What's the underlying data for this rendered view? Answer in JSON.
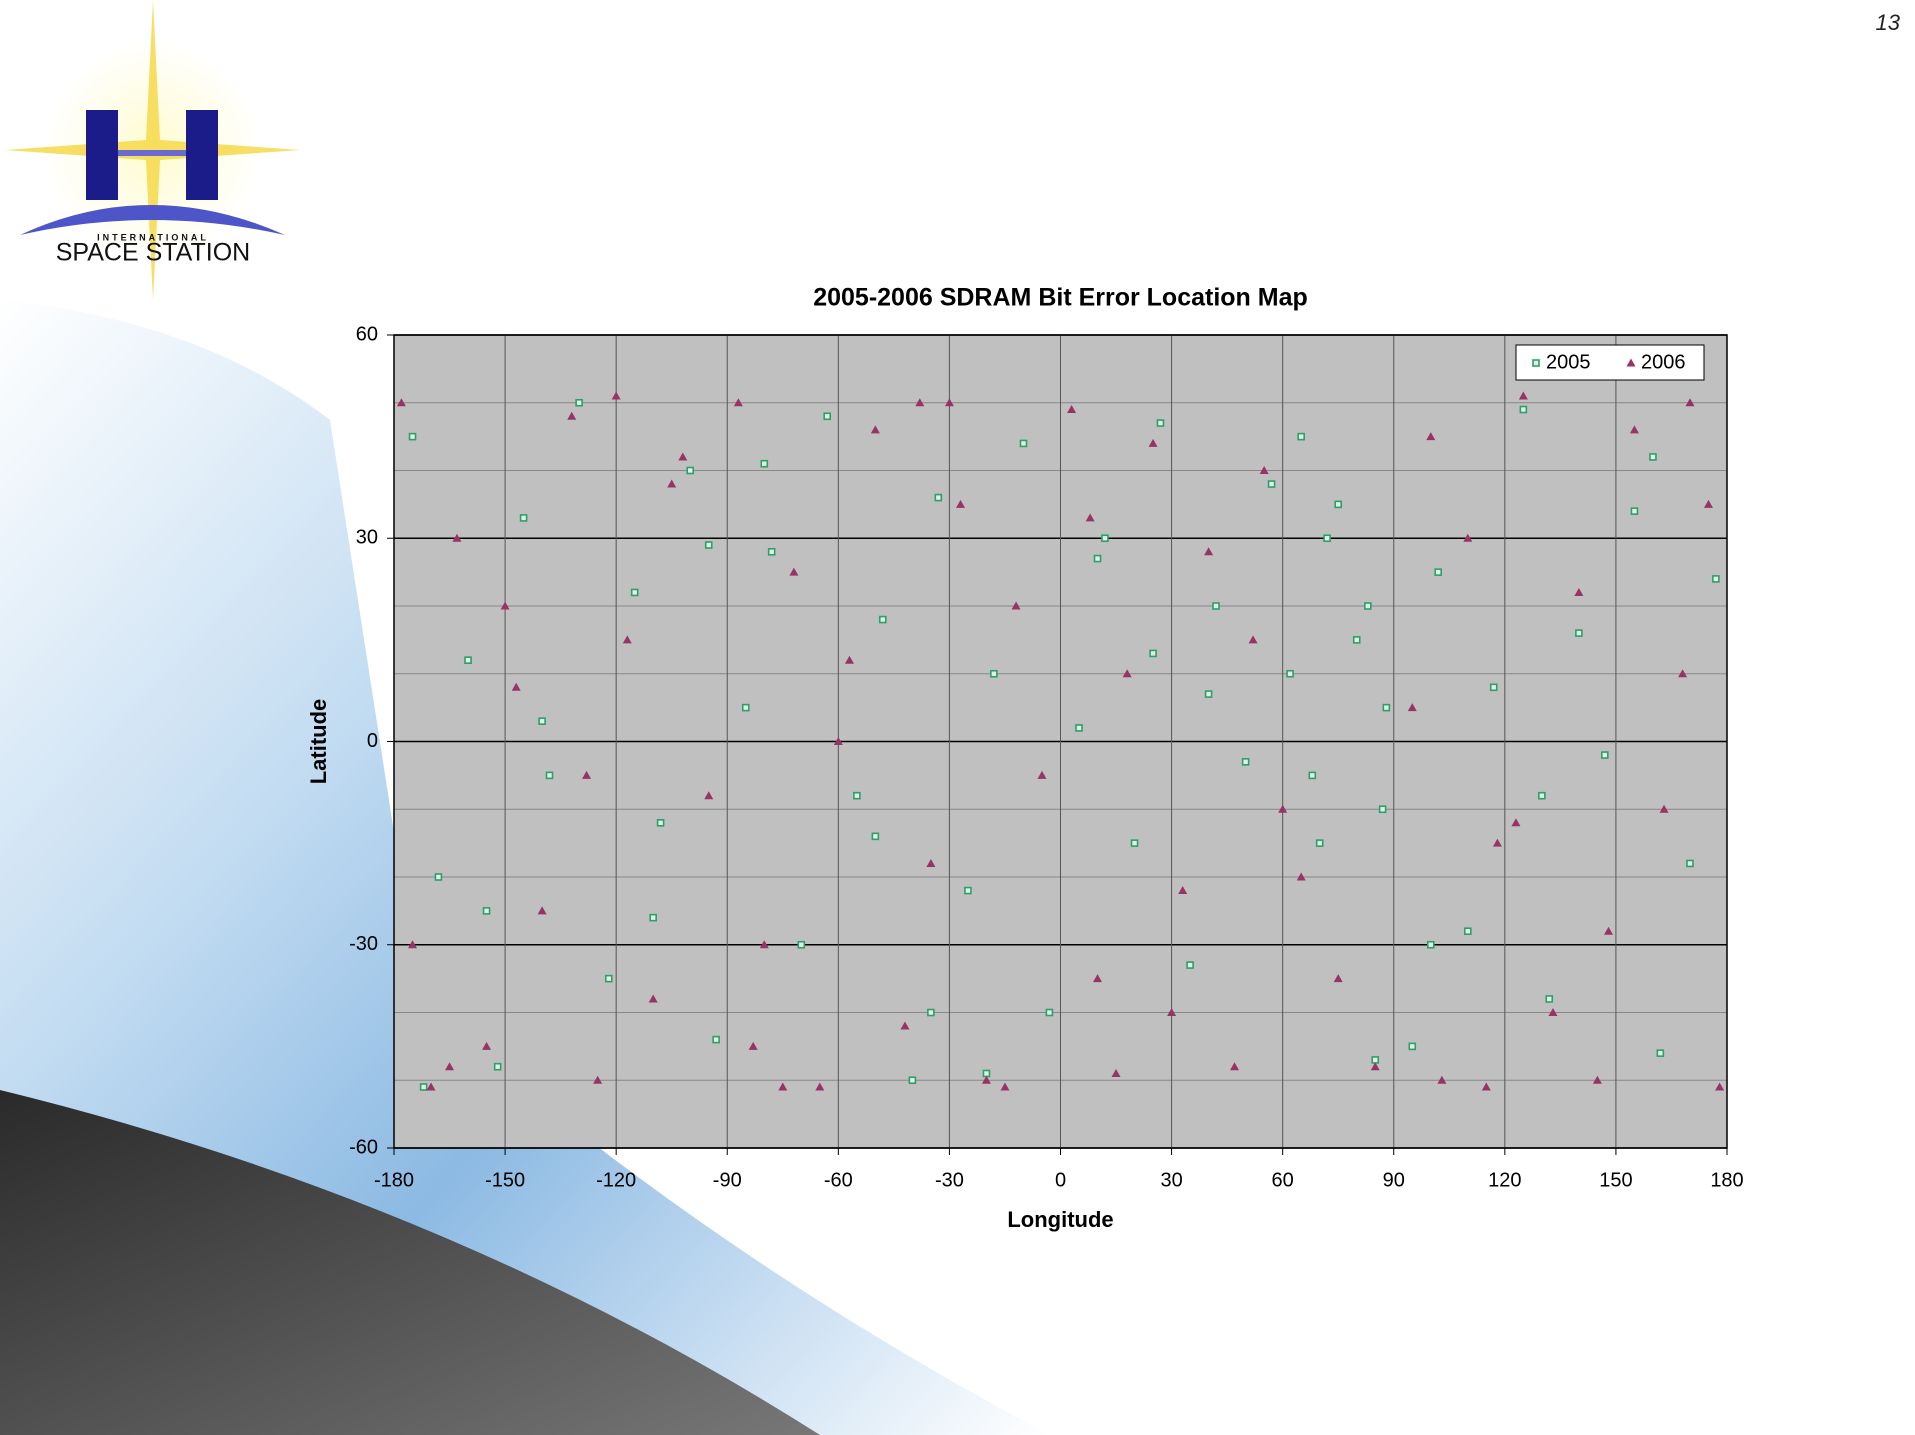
{
  "page_number": "13",
  "logo": {
    "line1": "INTERNATIONAL",
    "line2": "SPACE STATION"
  },
  "chart_data": {
    "type": "scatter",
    "title": "2005-2006 SDRAM Bit Error Location Map",
    "x_label": "Longitude",
    "y_label": "Latitude",
    "xlim": [
      -180,
      180
    ],
    "xticks": [
      -180,
      -150,
      -120,
      -90,
      -60,
      -30,
      0,
      30,
      60,
      90,
      120,
      150,
      180
    ],
    "ylim": [
      -60,
      60
    ],
    "yticks": [
      -60,
      -30,
      0,
      30,
      60
    ],
    "yminorticks": [
      -50,
      -40,
      -20,
      -10,
      10,
      20,
      40,
      50
    ],
    "grid": true,
    "plot_background": "#c0c0c0",
    "legend": "top-right",
    "series": [
      {
        "name": "2005",
        "color": "#2e9e6b",
        "marker": "square",
        "x": [
          -175,
          -168,
          -160,
          -152,
          -145,
          -138,
          -130,
          -122,
          -115,
          -108,
          -100,
          -93,
          -85,
          -78,
          -70,
          -63,
          -55,
          -48,
          -40,
          -33,
          -25,
          -18,
          -10,
          -3,
          5,
          12,
          20,
          27,
          35,
          42,
          50,
          57,
          65,
          72,
          80,
          87,
          95,
          102,
          110,
          117,
          125,
          132,
          140,
          147,
          155,
          162,
          170,
          177,
          -172,
          -140,
          -110,
          -80,
          -50,
          -20,
          10,
          40,
          62,
          68,
          75,
          83,
          88,
          100,
          130,
          160,
          -155,
          -95,
          -35,
          25,
          70,
          85
        ],
        "values": [
          45,
          -20,
          12,
          -48,
          33,
          -5,
          50,
          -35,
          22,
          -12,
          40,
          -44,
          5,
          28,
          -30,
          48,
          -8,
          18,
          -50,
          36,
          -22,
          10,
          44,
          -40,
          2,
          30,
          -15,
          47,
          -33,
          20,
          -3,
          38,
          45,
          30,
          15,
          -10,
          -45,
          25,
          -28,
          8,
          49,
          -38,
          16,
          -2,
          34,
          -46,
          -18,
          24,
          -51,
          3,
          -26,
          41,
          -14,
          -49,
          27,
          7,
          10,
          -5,
          35,
          20,
          5,
          -30,
          -8,
          42,
          -25,
          29,
          -40,
          13,
          -15,
          -47
        ]
      },
      {
        "name": "2006",
        "color": "#993366",
        "marker": "triangle",
        "x": [
          -178,
          -170,
          -163,
          -155,
          -147,
          -140,
          -132,
          -125,
          -117,
          -110,
          -102,
          -95,
          -87,
          -80,
          -72,
          -65,
          -57,
          -50,
          -42,
          -35,
          -27,
          -20,
          -12,
          -5,
          3,
          10,
          18,
          25,
          33,
          40,
          47,
          55,
          95,
          103,
          110,
          118,
          125,
          133,
          140,
          148,
          155,
          163,
          170,
          178,
          -175,
          -150,
          -128,
          -105,
          -83,
          -60,
          -38,
          -15,
          8,
          30,
          52,
          65,
          75,
          85,
          100,
          123,
          145,
          168,
          -165,
          -120,
          -75,
          -30,
          15,
          60,
          115,
          175
        ],
        "values": [
          50,
          -51,
          30,
          -45,
          8,
          -25,
          48,
          -50,
          15,
          -38,
          42,
          -8,
          50,
          -30,
          25,
          -51,
          12,
          46,
          -42,
          -18,
          35,
          -50,
          20,
          -5,
          49,
          -35,
          10,
          44,
          -22,
          28,
          -48,
          40,
          5,
          -50,
          30,
          -15,
          51,
          -40,
          22,
          -28,
          46,
          -10,
          50,
          -51,
          -30,
          20,
          -5,
          38,
          -45,
          0,
          50,
          -51,
          33,
          -40,
          15,
          -20,
          -35,
          -48,
          45,
          -12,
          -50,
          10,
          -48,
          51,
          -51,
          50,
          -49,
          -10,
          -51,
          35
        ]
      }
    ]
  }
}
